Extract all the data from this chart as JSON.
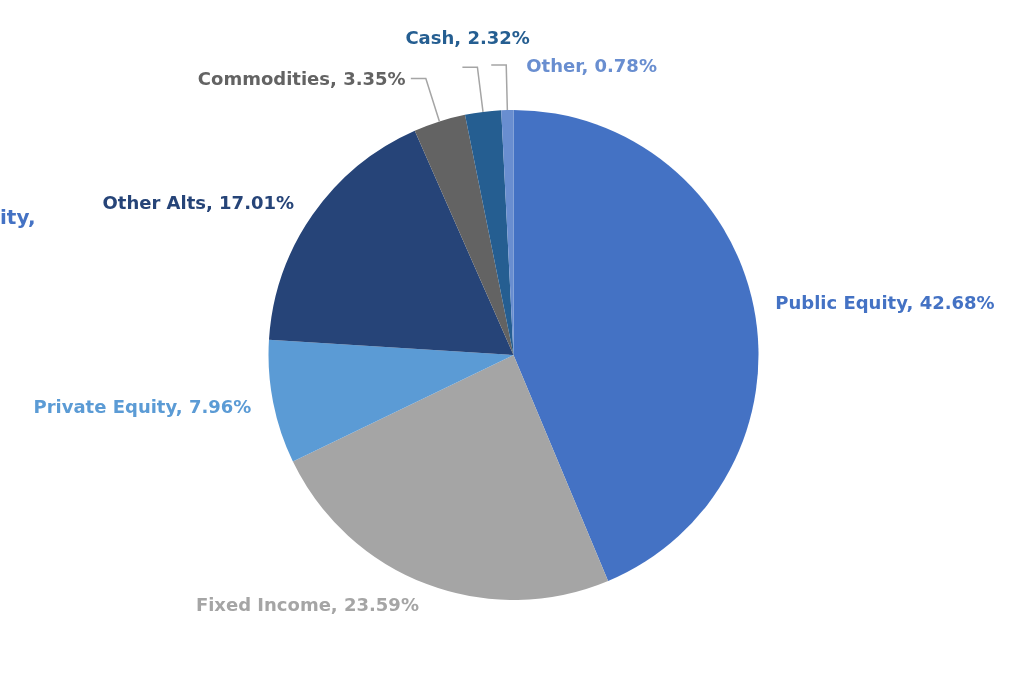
{
  "chart_data": {
    "type": "pie",
    "categories": [
      "Public Equity",
      "Fixed Income",
      "Private Equity",
      "Other Alts",
      "Commodities",
      "Cash",
      "Other"
    ],
    "value_labels": [
      "42.68%",
      "23.59%",
      "7.96%",
      "17.01%",
      "3.35%",
      "2.32%",
      "0.78%"
    ],
    "values": [
      42.68,
      23.59,
      7.96,
      17.01,
      3.35,
      2.32,
      0.78
    ],
    "colors": [
      "#4472c4",
      "#a5a5a5",
      "#5b9bd5",
      "#264478",
      "#636363",
      "#255e91",
      "#698ed0"
    ],
    "annotations": [
      "ity,"
    ]
  }
}
